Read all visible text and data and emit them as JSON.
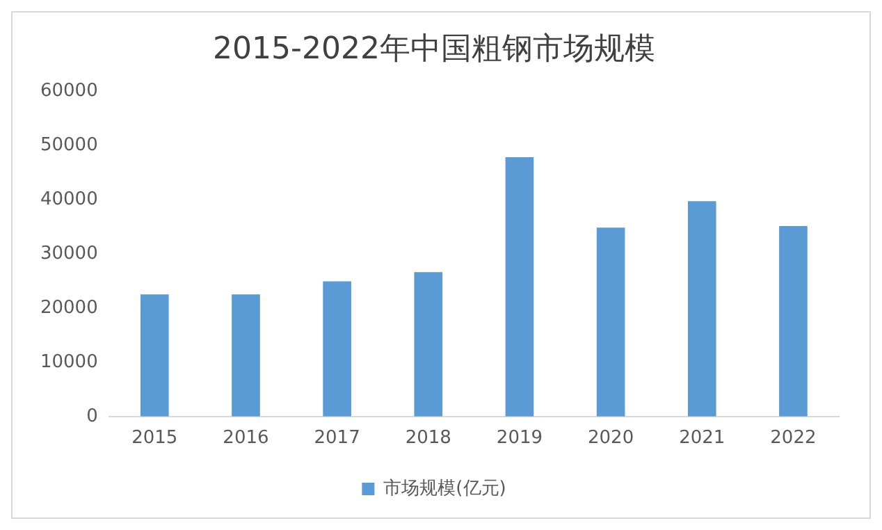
{
  "chart_data": {
    "type": "bar",
    "title": "2015-2022年中国粗钢市场规模",
    "categories": [
      "2015",
      "2016",
      "2017",
      "2018",
      "2019",
      "2020",
      "2021",
      "2022"
    ],
    "series": [
      {
        "name": "市场规模(亿元)",
        "color": "#5b9bd5",
        "values": [
          22500,
          22500,
          24900,
          26600,
          47800,
          34800,
          39700,
          35100
        ]
      }
    ],
    "ylim": [
      0,
      60000
    ],
    "yticks": [
      0,
      10000,
      20000,
      30000,
      40000,
      50000,
      60000
    ],
    "grid": false,
    "legend": "bottom"
  }
}
